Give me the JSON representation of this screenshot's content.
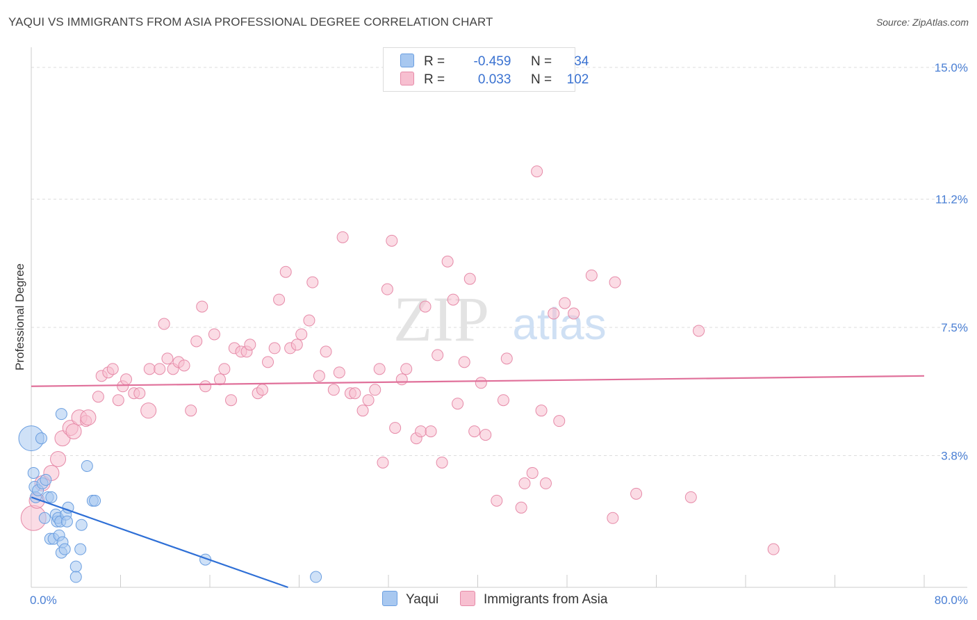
{
  "title": "YAQUI VS IMMIGRANTS FROM ASIA PROFESSIONAL DEGREE CORRELATION CHART",
  "source": "Source: ZipAtlas.com",
  "watermark": {
    "zip": "ZIP",
    "atlas": "atlas"
  },
  "legend": {
    "rows": [
      {
        "r_label": "R =",
        "r_value": "-0.459",
        "n_label": "N =",
        "n_value": "34",
        "color": "#a8c8f0",
        "border": "#6a9ee0"
      },
      {
        "r_label": "R =",
        "r_value": "0.033",
        "n_label": "N =",
        "n_value": "102",
        "color": "#f7bfd0",
        "border": "#e68aa8"
      }
    ]
  },
  "bottom_legend": [
    {
      "label": "Yaqui",
      "color": "#a8c8f0",
      "border": "#6a9ee0"
    },
    {
      "label": "Immigrants from Asia",
      "color": "#f7bfd0",
      "border": "#e68aa8"
    }
  ],
  "chart_data": {
    "type": "scatter",
    "title": "YAQUI VS IMMIGRANTS FROM ASIA PROFESSIONAL DEGREE CORRELATION CHART",
    "xlabel": "",
    "ylabel": "Professional Degree",
    "xlim": [
      0,
      80
    ],
    "ylim": [
      0,
      15
    ],
    "x_tick_labels": [
      "0.0%",
      "80.0%"
    ],
    "y_ticks": [
      3.8,
      7.5,
      11.2,
      15.0
    ],
    "y_tick_labels": [
      "3.8%",
      "7.5%",
      "11.2%",
      "15.0%"
    ],
    "series": [
      {
        "name": "Yaqui",
        "color": "#6a9ee0",
        "fill": "#a8c8f0",
        "trend": {
          "x": [
            0,
            23
          ],
          "y": [
            2.6,
            0
          ]
        },
        "points": [
          [
            0.0,
            4.3,
            3
          ],
          [
            0.2,
            3.3,
            1
          ],
          [
            0.3,
            2.9,
            1
          ],
          [
            0.4,
            2.6,
            1
          ],
          [
            0.6,
            2.8,
            1
          ],
          [
            0.9,
            4.3,
            1
          ],
          [
            1.0,
            3.0,
            1
          ],
          [
            1.2,
            2.0,
            1
          ],
          [
            1.3,
            3.1,
            1
          ],
          [
            1.5,
            2.6,
            1
          ],
          [
            1.7,
            1.4,
            1
          ],
          [
            1.8,
            2.6,
            1
          ],
          [
            2.0,
            1.4,
            1
          ],
          [
            2.2,
            2.1,
            1
          ],
          [
            2.3,
            1.9,
            1
          ],
          [
            2.4,
            2.0,
            1
          ],
          [
            2.5,
            1.5,
            1
          ],
          [
            2.6,
            1.9,
            1
          ],
          [
            2.7,
            1.0,
            1
          ],
          [
            2.8,
            1.3,
            1
          ],
          [
            2.7,
            5.0,
            1
          ],
          [
            3.0,
            1.1,
            1
          ],
          [
            3.1,
            2.1,
            1
          ],
          [
            3.2,
            1.9,
            1
          ],
          [
            3.3,
            2.3,
            1
          ],
          [
            4.0,
            0.6,
            1
          ],
          [
            4.0,
            0.3,
            1
          ],
          [
            4.4,
            1.1,
            1
          ],
          [
            4.5,
            1.8,
            1
          ],
          [
            5.0,
            3.5,
            1
          ],
          [
            5.5,
            2.5,
            1
          ],
          [
            5.7,
            2.5,
            1
          ],
          [
            15.6,
            0.8,
            1
          ],
          [
            25.5,
            0.3,
            1
          ]
        ]
      },
      {
        "name": "Immigrants from Asia",
        "color": "#e68aa8",
        "fill": "#f7bfd0",
        "trend": {
          "x": [
            0,
            80
          ],
          "y": [
            5.8,
            6.1
          ]
        },
        "points": [
          [
            0.2,
            2.0,
            3
          ],
          [
            0.5,
            2.5,
            2
          ],
          [
            1.0,
            3.0,
            2
          ],
          [
            1.8,
            3.3,
            2
          ],
          [
            2.4,
            3.7,
            2
          ],
          [
            2.8,
            4.3,
            2
          ],
          [
            3.5,
            4.6,
            2
          ],
          [
            3.8,
            4.5,
            2
          ],
          [
            4.3,
            4.9,
            2
          ],
          [
            4.9,
            4.8,
            1
          ],
          [
            5.1,
            4.9,
            2
          ],
          [
            6.0,
            5.5,
            1
          ],
          [
            6.3,
            6.1,
            1
          ],
          [
            6.9,
            6.2,
            1
          ],
          [
            7.3,
            6.3,
            1
          ],
          [
            7.8,
            5.4,
            1
          ],
          [
            8.2,
            5.8,
            1
          ],
          [
            8.5,
            6.0,
            1
          ],
          [
            9.2,
            5.6,
            1
          ],
          [
            9.7,
            5.6,
            1
          ],
          [
            10.5,
            5.1,
            2
          ],
          [
            10.6,
            6.3,
            1
          ],
          [
            11.5,
            6.3,
            1
          ],
          [
            11.9,
            7.6,
            1
          ],
          [
            12.2,
            6.6,
            1
          ],
          [
            12.7,
            6.3,
            1
          ],
          [
            13.2,
            6.5,
            1
          ],
          [
            13.7,
            6.4,
            1
          ],
          [
            14.3,
            5.1,
            1
          ],
          [
            14.8,
            7.1,
            1
          ],
          [
            15.3,
            8.1,
            1
          ],
          [
            15.6,
            5.8,
            1
          ],
          [
            16.4,
            7.3,
            1
          ],
          [
            16.9,
            6.0,
            1
          ],
          [
            17.3,
            6.3,
            1
          ],
          [
            17.9,
            5.4,
            1
          ],
          [
            18.2,
            6.9,
            1
          ],
          [
            18.8,
            6.8,
            1
          ],
          [
            19.3,
            6.8,
            1
          ],
          [
            19.6,
            7.0,
            1
          ],
          [
            20.3,
            5.6,
            1
          ],
          [
            20.7,
            5.7,
            1
          ],
          [
            21.2,
            6.5,
            1
          ],
          [
            21.8,
            6.9,
            1
          ],
          [
            22.2,
            8.3,
            1
          ],
          [
            22.8,
            9.1,
            1
          ],
          [
            23.2,
            6.9,
            1
          ],
          [
            23.8,
            7.0,
            1
          ],
          [
            24.2,
            7.3,
            1
          ],
          [
            24.9,
            7.7,
            1
          ],
          [
            25.2,
            8.8,
            1
          ],
          [
            25.8,
            6.1,
            1
          ],
          [
            26.4,
            6.8,
            1
          ],
          [
            27.1,
            5.7,
            1
          ],
          [
            27.6,
            6.2,
            1
          ],
          [
            27.9,
            10.1,
            1
          ],
          [
            28.6,
            5.6,
            1
          ],
          [
            29.0,
            5.6,
            1
          ],
          [
            29.7,
            5.1,
            1
          ],
          [
            30.2,
            5.4,
            1
          ],
          [
            30.8,
            5.7,
            1
          ],
          [
            31.2,
            6.3,
            1
          ],
          [
            31.5,
            3.6,
            1
          ],
          [
            31.9,
            8.6,
            1
          ],
          [
            32.3,
            10.0,
            1
          ],
          [
            32.6,
            4.6,
            1
          ],
          [
            33.2,
            6.0,
            1
          ],
          [
            33.6,
            6.3,
            1
          ],
          [
            34.5,
            4.3,
            1
          ],
          [
            34.9,
            4.5,
            1
          ],
          [
            35.3,
            8.1,
            1
          ],
          [
            35.8,
            4.5,
            1
          ],
          [
            36.4,
            6.7,
            1
          ],
          [
            36.8,
            3.6,
            1
          ],
          [
            37.3,
            9.4,
            1
          ],
          [
            37.8,
            8.3,
            1
          ],
          [
            38.2,
            5.3,
            1
          ],
          [
            38.8,
            6.5,
            1
          ],
          [
            39.3,
            8.9,
            1
          ],
          [
            39.7,
            4.5,
            1
          ],
          [
            40.3,
            5.9,
            1
          ],
          [
            40.7,
            4.4,
            1
          ],
          [
            41.7,
            2.5,
            1
          ],
          [
            42.3,
            5.4,
            1
          ],
          [
            42.6,
            6.6,
            1
          ],
          [
            43.9,
            2.3,
            1
          ],
          [
            44.2,
            3.0,
            1
          ],
          [
            44.9,
            3.3,
            1
          ],
          [
            45.3,
            12.0,
            1
          ],
          [
            45.7,
            5.1,
            1
          ],
          [
            46.1,
            3.0,
            1
          ],
          [
            46.8,
            7.9,
            1
          ],
          [
            47.3,
            4.8,
            1
          ],
          [
            47.8,
            8.2,
            1
          ],
          [
            48.6,
            7.9,
            1
          ],
          [
            50.2,
            9.0,
            1
          ],
          [
            52.1,
            2.0,
            1
          ],
          [
            52.3,
            8.8,
            1
          ],
          [
            54.2,
            2.7,
            1
          ],
          [
            59.1,
            2.6,
            1
          ],
          [
            59.8,
            7.4,
            1
          ],
          [
            66.5,
            1.1,
            1
          ]
        ]
      }
    ]
  }
}
